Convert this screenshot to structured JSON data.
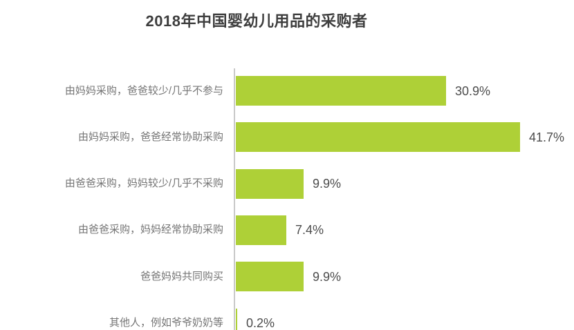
{
  "chart": {
    "title": "2018年中国婴幼儿用品的采购者"
  },
  "chart_data": {
    "type": "bar",
    "orientation": "horizontal",
    "title": "2018年中国婴幼儿用品的采购者",
    "categories": [
      "由妈妈采购，爸爸较少/几乎不参与",
      "由妈妈采购，爸爸经常协助采购",
      "由爸爸采购，妈妈较少/几乎不采购",
      "由爸爸采购，妈妈经常协助采购",
      "爸爸妈妈共同购买",
      "其他人，例如爷爷奶奶等"
    ],
    "values": [
      30.9,
      41.7,
      9.9,
      7.4,
      9.9,
      0.2
    ],
    "value_labels": [
      "30.9%",
      "41.7%",
      "9.9%",
      "7.4%",
      "9.9%",
      "0.2%"
    ],
    "xlabel": "",
    "ylabel": "",
    "xlim": [
      0,
      45
    ],
    "grid": false,
    "legend": false,
    "bar_color": "#aed037",
    "axis_color": "#c9c9c9",
    "title_color": "#3e3e3e",
    "category_label_color": "#757575",
    "value_label_color": "#4c4c4c"
  }
}
